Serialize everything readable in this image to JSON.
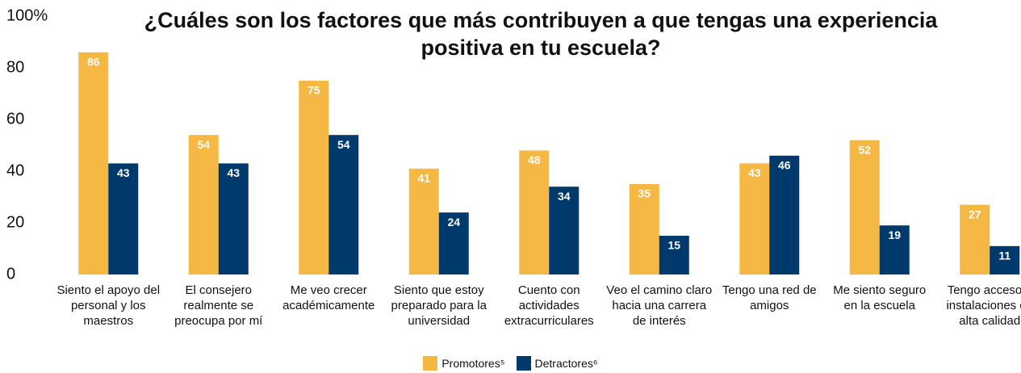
{
  "chart_data": {
    "type": "bar",
    "title": "¿Cuáles son los factores que más contribuyen a que tengas una experiencia positiva en tu escuela?",
    "categories": [
      "Siento el apoyo del personal y los maestros",
      "El consejero realmente se preocupa por mí",
      "Me veo crecer académicamente",
      "Siento que estoy preparado para la universidad",
      "Cuento con actividades extracurriculares",
      "Veo el camino claro hacia una carrera de interés",
      "Tengo una red de amigos",
      "Me siento seguro en la escuela",
      "Tengo acceso a instalaciones de alta calidad"
    ],
    "series": [
      {
        "name": "Promotores⁵",
        "color": "#f5b844",
        "values": [
          86,
          54,
          75,
          41,
          48,
          35,
          43,
          52,
          27
        ]
      },
      {
        "name": "Detractores⁶",
        "color": "#003a6c",
        "values": [
          43,
          43,
          54,
          24,
          34,
          15,
          46,
          19,
          11
        ]
      }
    ],
    "ylim": [
      0,
      100
    ],
    "yticks": [
      0,
      20,
      40,
      60,
      80,
      {
        "value": 100,
        "label": "100%"
      }
    ]
  }
}
